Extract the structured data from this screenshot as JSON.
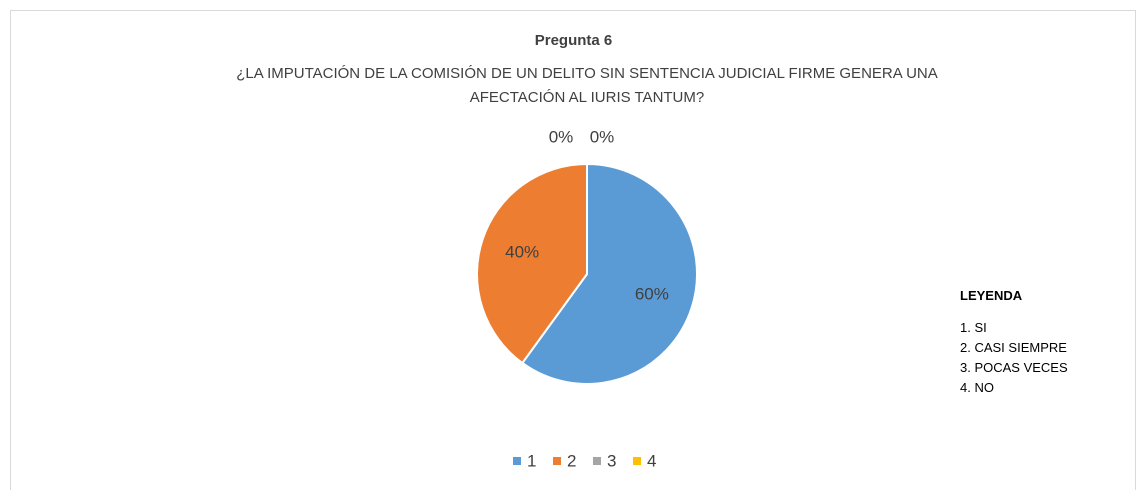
{
  "chart_data": {
    "type": "pie",
    "title": "Pregunta 6",
    "subtitle": "¿LA IMPUTACIÓN DE LA COMISIÓN DE UN DELITO SIN SENTENCIA JUDICIAL FIRME GENERA UNA AFECTACIÓN AL IURIS TANTUM?",
    "categories": [
      "1",
      "2",
      "3",
      "4"
    ],
    "values": [
      60,
      40,
      0,
      0
    ],
    "value_labels": [
      "60%",
      "40%",
      "0%",
      "0%"
    ],
    "colors": [
      "#5b9bd5",
      "#ed7d31",
      "#a5a5a5",
      "#ffc000"
    ],
    "legend": "bottom",
    "annotation": {
      "title": "LEYENDA",
      "items": [
        "1. SI",
        "2. CASI SIEMPRE",
        "3. POCAS VECES",
        "4. NO"
      ]
    }
  }
}
